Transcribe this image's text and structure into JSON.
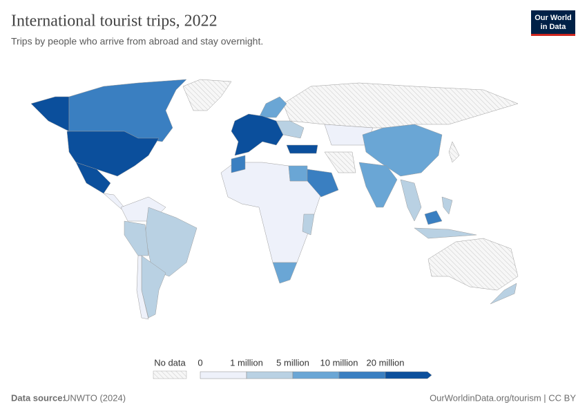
{
  "header": {
    "title": "International tourist trips, 2022",
    "subtitle": "Trips by people who arrive from abroad and stay overnight."
  },
  "logo": {
    "line1": "Our World",
    "line2": "in Data"
  },
  "legend": {
    "no_data_label": "No data",
    "labels": [
      "0",
      "1 million",
      "5 million",
      "10 million",
      "20 million"
    ],
    "colors": [
      "#eef1fa",
      "#b9d1e3",
      "#6aa6d5",
      "#3a7fc1",
      "#0b4f9c"
    ]
  },
  "footer": {
    "source_label": "Data source:",
    "source": "UNWTO (2024)",
    "url": "OurWorldinData.org/tourism | CC BY"
  }
}
